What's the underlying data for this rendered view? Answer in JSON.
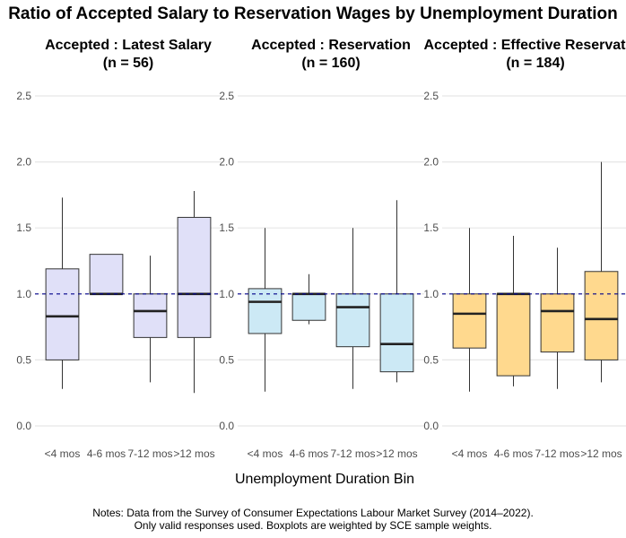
{
  "figure": {
    "title": "Ratio of Accepted Salary to Reservation Wages by Unemployment Duration",
    "xlabel": "Unemployment Duration Bin",
    "notes": [
      "Notes: Data from the Survey of Consumer Expectations Labour Market Survey (2014–2022).",
      "Only valid responses used. Boxplots are weighted by SCE sample weights."
    ],
    "reference_line": 1.0,
    "reference_color": "#00008b"
  },
  "chart_data": [
    {
      "type": "box",
      "title": "Accepted : Latest Salary",
      "subtitle": "(n = 56)",
      "fill": "#e0e0f8",
      "categories": [
        "<4 mos",
        "4-6 mos",
        "7-12 mos",
        ">12 mos"
      ],
      "boxes": [
        {
          "min": 0.28,
          "q1": 0.5,
          "median": 0.83,
          "q3": 1.19,
          "max": 1.73
        },
        {
          "min": 1.0,
          "q1": 1.0,
          "median": 1.0,
          "q3": 1.3,
          "max": 1.3
        },
        {
          "min": 0.33,
          "q1": 0.67,
          "median": 0.87,
          "q3": 1.0,
          "max": 1.29
        },
        {
          "min": 0.25,
          "q1": 0.67,
          "median": 1.0,
          "q3": 1.58,
          "max": 1.78
        }
      ],
      "ylim": [
        0,
        2.5
      ],
      "yticks": [
        "0.0",
        "0.5",
        "1.0",
        "1.5",
        "2.0",
        "2.5"
      ]
    },
    {
      "type": "box",
      "title": "Accepted : Reservation",
      "subtitle": "(n = 160)",
      "fill": "#cce9f5",
      "categories": [
        "<4 mos",
        "4-6 mos",
        "7-12 mos",
        ">12 mos"
      ],
      "boxes": [
        {
          "min": 0.26,
          "q1": 0.7,
          "median": 0.94,
          "q3": 1.04,
          "max": 1.5
        },
        {
          "min": 0.77,
          "q1": 0.8,
          "median": 1.0,
          "q3": 1.0,
          "max": 1.15
        },
        {
          "min": 0.28,
          "q1": 0.6,
          "median": 0.9,
          "q3": 1.0,
          "max": 1.5
        },
        {
          "min": 0.33,
          "q1": 0.41,
          "median": 0.62,
          "q3": 1.0,
          "max": 1.71
        }
      ],
      "ylim": [
        0,
        2.5
      ],
      "yticks": [
        "0.0",
        "0.5",
        "1.0",
        "1.5",
        "2.0",
        "2.5"
      ]
    },
    {
      "type": "box",
      "title": "Accepted : Effective Reservation",
      "subtitle": "(n = 184)",
      "fill": "#ffd98e",
      "categories": [
        "<4 mos",
        "4-6 mos",
        "7-12 mos",
        ">12 mos"
      ],
      "boxes": [
        {
          "min": 0.26,
          "q1": 0.59,
          "median": 0.85,
          "q3": 1.0,
          "max": 1.5
        },
        {
          "min": 0.3,
          "q1": 0.38,
          "median": 1.0,
          "q3": 1.0,
          "max": 1.44
        },
        {
          "min": 0.28,
          "q1": 0.56,
          "median": 0.87,
          "q3": 1.0,
          "max": 1.35
        },
        {
          "min": 0.33,
          "q1": 0.5,
          "median": 0.81,
          "q3": 1.17,
          "max": 2.0
        }
      ],
      "ylim": [
        0,
        2.5
      ],
      "yticks": [
        "0.0",
        "0.5",
        "1.0",
        "1.5",
        "2.0",
        "2.5"
      ]
    }
  ]
}
